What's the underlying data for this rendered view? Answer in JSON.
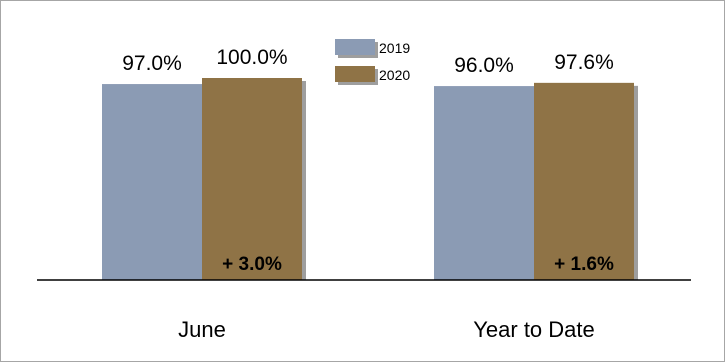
{
  "chart_data": {
    "type": "bar",
    "categories": [
      "June",
      "Year to Date"
    ],
    "series": [
      {
        "name": "2019",
        "values": [
          97.0,
          96.0
        ],
        "value_labels": [
          "97.0%",
          "96.0%"
        ],
        "color": "#8b9bb4"
      },
      {
        "name": "2020",
        "values": [
          100.0,
          97.6
        ],
        "value_labels": [
          "100.0%",
          "97.6%"
        ],
        "color": "#8f7346"
      }
    ],
    "change_labels": [
      "+ 3.0%",
      "+ 1.6%"
    ],
    "title": "",
    "xlabel": "",
    "ylabel": "",
    "ylim": [
      0,
      100
    ],
    "grid": false,
    "legend": "top-center",
    "axis_color": "#000000"
  }
}
